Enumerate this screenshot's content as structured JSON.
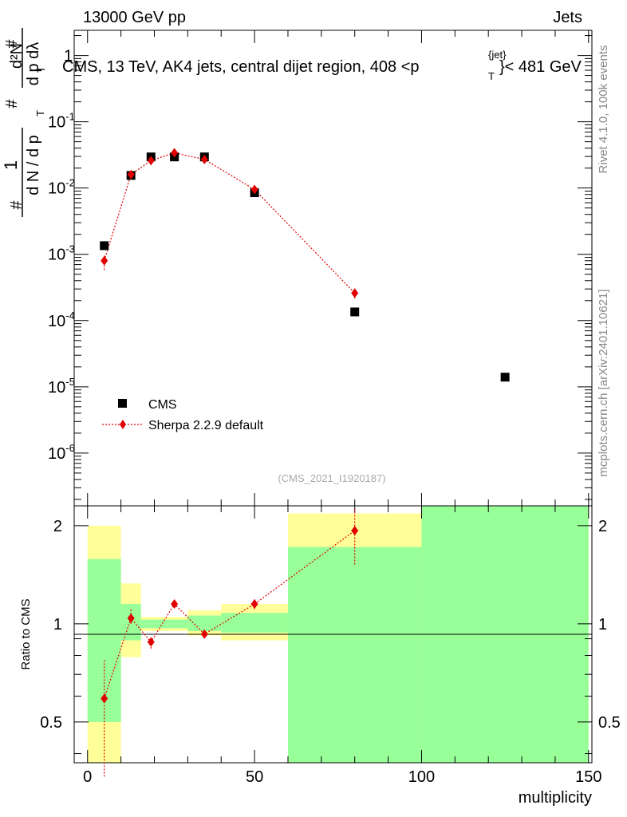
{
  "header": {
    "left_title": "13000 GeV pp",
    "right_title": "Jets",
    "plot_title_main": "CMS, 13 TeV, AK4 jets, central dijet region, 408 <p",
    "plot_title_sub": "T",
    "plot_title_sup": "{jet}",
    "plot_title_end": "}< 481 GeV"
  },
  "side_labels": {
    "rivet": "Rivet 4.1.0,  100k events",
    "mcplots": "mcplots.cern.ch [arXiv:2401.10621]",
    "analysis": "(CMS_2021_I1920187)"
  },
  "y_axis_main": {
    "num_hash": "#",
    "den_hash": "#",
    "one": "1",
    "dN_dp_left": "d N / d p",
    "T": "T",
    "d2N": "d²N",
    "dp_dlambda": "d p  dλ",
    "T2": "T",
    "ticks": [
      {
        "value": 1e-06,
        "base": "10",
        "exp": "-6"
      },
      {
        "value": 1e-05,
        "base": "10",
        "exp": "-5"
      },
      {
        "value": 0.0001,
        "base": "10",
        "exp": "-4"
      },
      {
        "value": 0.001,
        "base": "10",
        "exp": "-3"
      },
      {
        "value": 0.01,
        "base": "10",
        "exp": "-2"
      },
      {
        "value": 0.1,
        "base": "10",
        "exp": "-1"
      },
      {
        "value": 1,
        "base": "1",
        "exp": ""
      }
    ]
  },
  "x_axis": {
    "label": "multiplicity",
    "ticks": [
      "0",
      "50",
      "100",
      "150"
    ]
  },
  "ratio_axis": {
    "label": "Ratio to CMS",
    "ticks": [
      "0.5",
      "1",
      "2"
    ]
  },
  "legend": {
    "cms": "CMS",
    "sherpa": "Sherpa 2.2.9 default"
  },
  "colors": {
    "cms": "#000000",
    "sherpa": "#e00000",
    "band_outer": "#ffff99",
    "band_inner": "#99ff99"
  },
  "chart_data": {
    "type": "scatter",
    "title": "CMS, 13 TeV, AK4 jets, central dijet region, 408 < pT{jet} < 481 GeV",
    "xlabel": "multiplicity",
    "ylabel": "1/N dN / dpT dλ",
    "xlim": [
      -4,
      151
    ],
    "ylim_log": [
      1.6e-07,
      2.4
    ],
    "ratio_ylim": [
      0.375,
      2.3
    ],
    "series": [
      {
        "name": "CMS",
        "x": [
          5,
          13,
          19,
          26,
          35,
          50,
          80,
          125
        ],
        "y": [
          0.00135,
          0.0155,
          0.0295,
          0.0295,
          0.0295,
          0.0085,
          0.000135,
          1.4e-05
        ]
      },
      {
        "name": "Sherpa 2.2.9 default",
        "x": [
          5,
          13,
          19,
          26,
          35,
          50,
          80
        ],
        "y": [
          0.0008,
          0.016,
          0.026,
          0.034,
          0.027,
          0.0095,
          0.00026
        ],
        "yerr_lo": [
          0.00058,
          0.015,
          0.0245,
          0.0325,
          0.026,
          0.009,
          0.000215
        ],
        "yerr_hi": [
          0.00098,
          0.017,
          0.0275,
          0.0355,
          0.028,
          0.01,
          0.000305
        ]
      }
    ],
    "ratio": {
      "x": [
        5,
        13,
        19,
        26,
        35,
        50,
        80
      ],
      "y": [
        0.59,
        1.04,
        0.88,
        1.15,
        0.93,
        1.15,
        1.93
      ],
      "y_lo": [
        0.34,
        1.0,
        0.84,
        1.12,
        0.91,
        1.11,
        1.52
      ],
      "y_hi": [
        0.78,
        1.12,
        0.91,
        1.17,
        0.95,
        1.19,
        2.26
      ]
    },
    "bands": [
      {
        "x0": 0,
        "x1": 10,
        "outer": [
          0.375,
          2.0
        ],
        "inner": [
          0.5,
          1.58
        ]
      },
      {
        "x0": 10,
        "x1": 16,
        "outer": [
          0.79,
          1.33
        ],
        "inner": [
          0.89,
          1.15
        ]
      },
      {
        "x0": 16,
        "x1": 30,
        "outer": [
          0.95,
          1.05
        ],
        "inner": [
          0.97,
          1.03
        ]
      },
      {
        "x0": 30,
        "x1": 40,
        "outer": [
          0.92,
          1.1
        ],
        "inner": [
          0.95,
          1.06
        ]
      },
      {
        "x0": 40,
        "x1": 60,
        "outer": [
          0.89,
          1.15
        ],
        "inner": [
          0.94,
          1.08
        ]
      },
      {
        "x0": 60,
        "x1": 100,
        "outer": [
          0.375,
          2.18
        ],
        "inner": [
          0.375,
          1.72
        ]
      },
      {
        "x0": 100,
        "x1": 150,
        "outer": [
          0.375,
          2.3
        ],
        "inner": [
          0.375,
          2.3
        ]
      }
    ]
  }
}
